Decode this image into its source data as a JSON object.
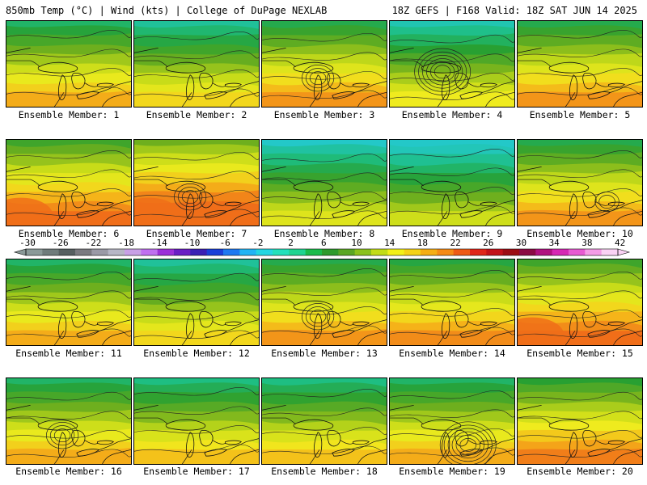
{
  "header": {
    "left": "850mb Temp (°C) | Wind (kts) | College of DuPage NEXLAB",
    "right": "18Z GEFS | F168 Valid: 18Z SAT JUN 14 2025"
  },
  "members": [
    {
      "label": "Ensemble Member: 1",
      "warmth": 0.55,
      "low": null
    },
    {
      "label": "Ensemble Member: 2",
      "warmth": 0.45,
      "low": null
    },
    {
      "label": "Ensemble Member: 3",
      "warmth": 0.6,
      "low": "center"
    },
    {
      "label": "Ensemble Member: 4",
      "warmth": 0.4,
      "low": "strong"
    },
    {
      "label": "Ensemble Member: 5",
      "warmth": 0.6,
      "low": null
    },
    {
      "label": "Ensemble Member: 6",
      "warmth": 0.7,
      "low": null
    },
    {
      "label": "Ensemble Member: 7",
      "warmth": 0.8,
      "low": "center"
    },
    {
      "label": "Ensemble Member: 8",
      "warmth": 0.35,
      "low": null
    },
    {
      "label": "Ensemble Member: 9",
      "warmth": 0.3,
      "low": null
    },
    {
      "label": "Ensemble Member: 10",
      "warmth": 0.6,
      "low": "east"
    },
    {
      "label": "Ensemble Member: 11",
      "warmth": 0.55,
      "low": null
    },
    {
      "label": "Ensemble Member: 12",
      "warmth": 0.45,
      "low": null
    },
    {
      "label": "Ensemble Member: 13",
      "warmth": 0.6,
      "low": "center"
    },
    {
      "label": "Ensemble Member: 14",
      "warmth": 0.62,
      "low": null
    },
    {
      "label": "Ensemble Member: 15",
      "warmth": 0.7,
      "low": null
    },
    {
      "label": "Ensemble Member: 16",
      "warmth": 0.55,
      "low": "center"
    },
    {
      "label": "Ensemble Member: 17",
      "warmth": 0.5,
      "low": null
    },
    {
      "label": "Ensemble Member: 18",
      "warmth": 0.5,
      "low": null
    },
    {
      "label": "Ensemble Member: 19",
      "warmth": 0.55,
      "low": "strong-east"
    },
    {
      "label": "Ensemble Member: 20",
      "warmth": 0.65,
      "low": null
    }
  ],
  "colorbar": {
    "labels": [
      "-30",
      "-26",
      "-22",
      "-18",
      "-14",
      "-10",
      "-6",
      "-2",
      "2",
      "6",
      "10",
      "14",
      "18",
      "22",
      "26",
      "30",
      "34",
      "38",
      "42"
    ],
    "colors": [
      "#8a9a98",
      "#6f7c7b",
      "#565f60",
      "#7a7a80",
      "#9a9aa6",
      "#b7b7c6",
      "#c8a0e6",
      "#c070f0",
      "#9b30d8",
      "#6a1fc4",
      "#3b1fb4",
      "#1a3fd8",
      "#1e78f0",
      "#22b4f4",
      "#23d6e2",
      "#22e0bb",
      "#1fd490",
      "#1abb4a",
      "#2e9a2c",
      "#5aa624",
      "#8bc11c",
      "#c2dc18",
      "#f2f018",
      "#f4d216",
      "#f5ae14",
      "#f58a14",
      "#ee5a14",
      "#e0261a",
      "#c31219",
      "#9c0d14",
      "#8b0b44",
      "#b01280",
      "#d628b4",
      "#e85ad2",
      "#f49ce6",
      "#fad2f4"
    ]
  }
}
